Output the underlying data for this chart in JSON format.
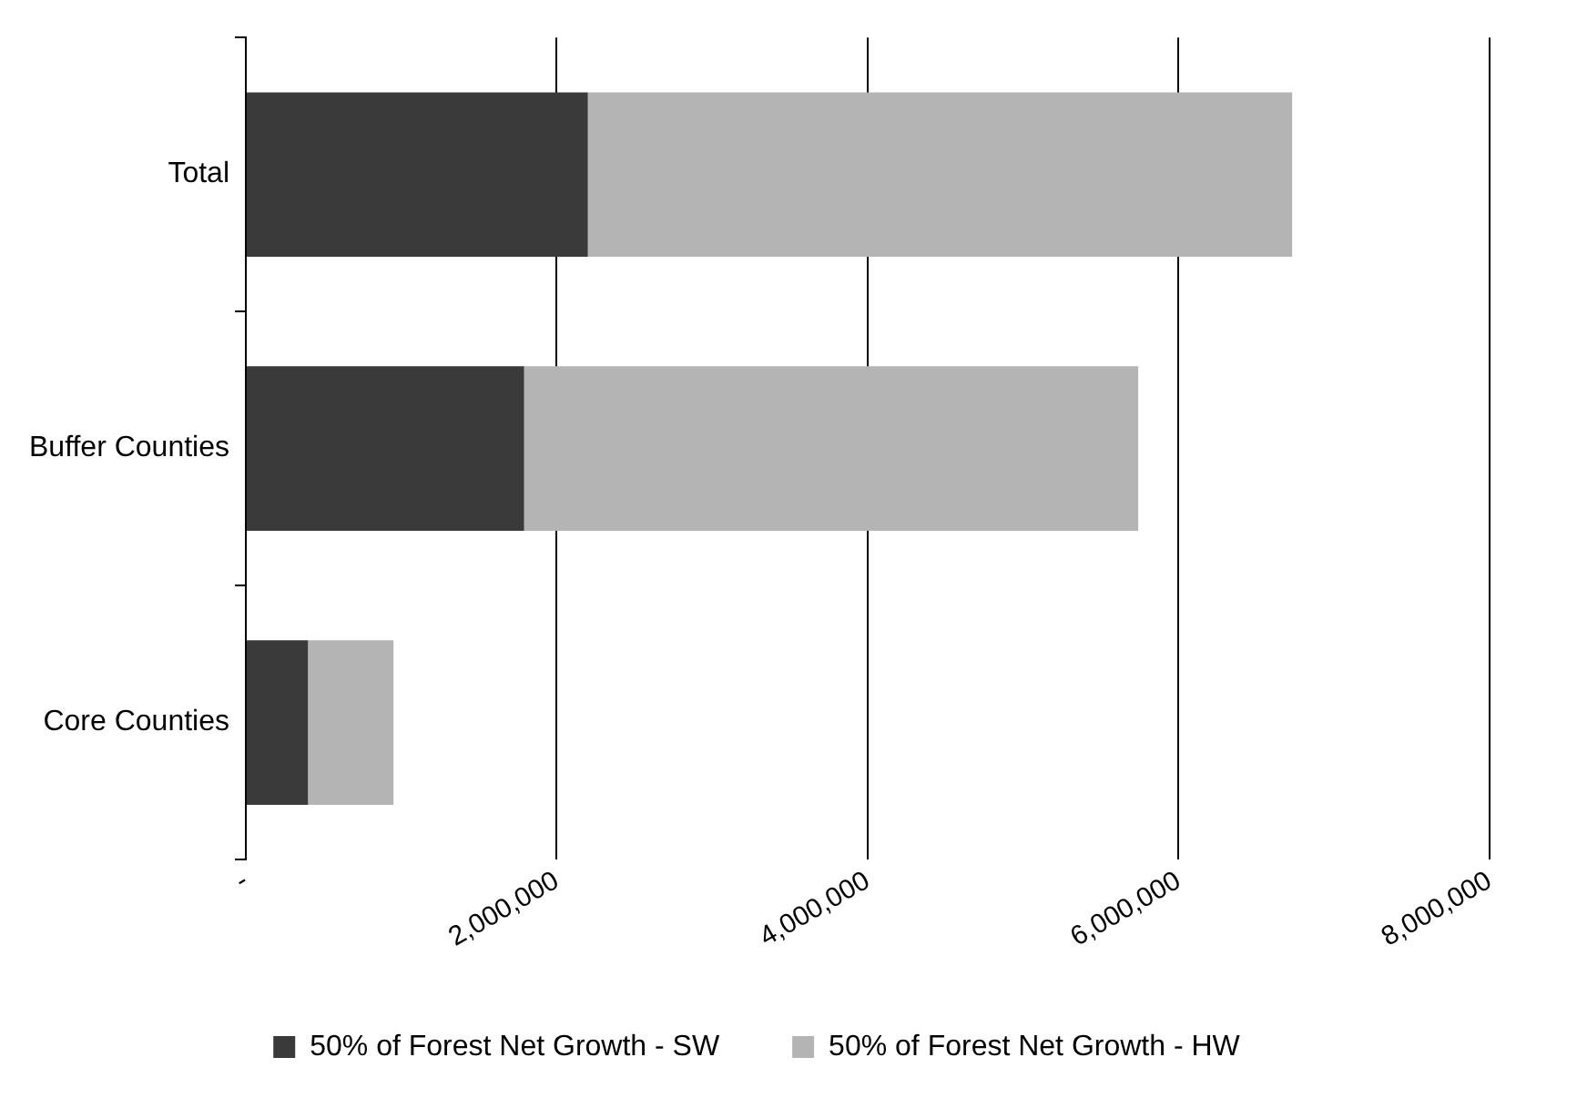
{
  "chart_data": {
    "type": "bar",
    "orientation": "horizontal",
    "stacked": true,
    "categories": [
      "Total",
      "Buffer Counties",
      "Core Counties"
    ],
    "series": [
      {
        "name": "50% of Forest Net Growth - SW",
        "color": "#3a3a3a",
        "values": [
          2200000,
          1790000,
          400000
        ]
      },
      {
        "name": "50% of Forest Net Growth - HW",
        "color": "#b4b4b4",
        "values": [
          4530000,
          3950000,
          550000
        ]
      }
    ],
    "xlim": [
      0,
      8000000
    ],
    "xticks": [
      {
        "value": 0,
        "label": "-"
      },
      {
        "value": 2000000,
        "label": "2,000,000"
      },
      {
        "value": 4000000,
        "label": "4,000,000"
      },
      {
        "value": 6000000,
        "label": "6,000,000"
      },
      {
        "value": 8000000,
        "label": "8,000,000"
      }
    ],
    "grid": "x",
    "legend": "bottom"
  }
}
